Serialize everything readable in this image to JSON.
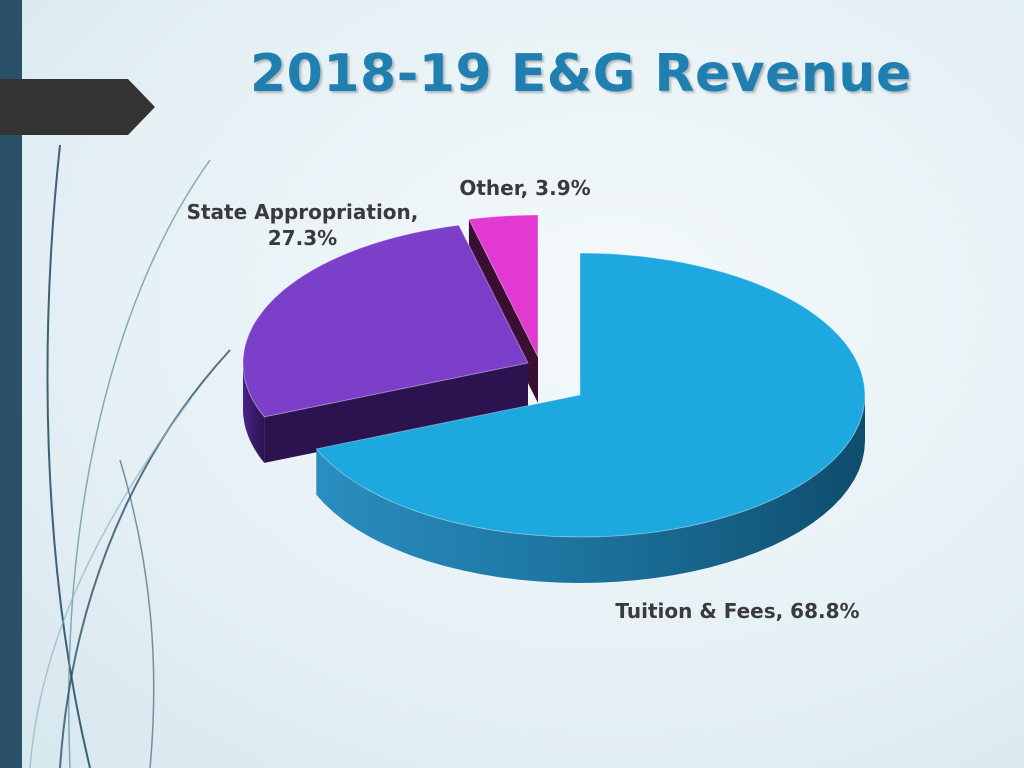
{
  "slide": {
    "title": "2018-19 E&G Revenue"
  },
  "chart_data": {
    "type": "pie",
    "title": "",
    "slices": [
      {
        "label": "Tuition & Fees",
        "value": 68.8,
        "display": "Tuition & Fees, 68.8%",
        "color": "#1da9e0"
      },
      {
        "label": "State Appropriation",
        "value": 27.3,
        "display_line1": "State Appropriation,",
        "display_line2": "27.3%",
        "color": "#7c3fca"
      },
      {
        "label": "Other",
        "value": 3.9,
        "display": "Other, 3.9%",
        "color": "#e23ad0"
      }
    ],
    "units": "%",
    "exploded": true,
    "three_d": true
  },
  "colors": {
    "accent": "#1f7fb0",
    "sidebar": "#2b5168",
    "arrow": "#333333"
  }
}
